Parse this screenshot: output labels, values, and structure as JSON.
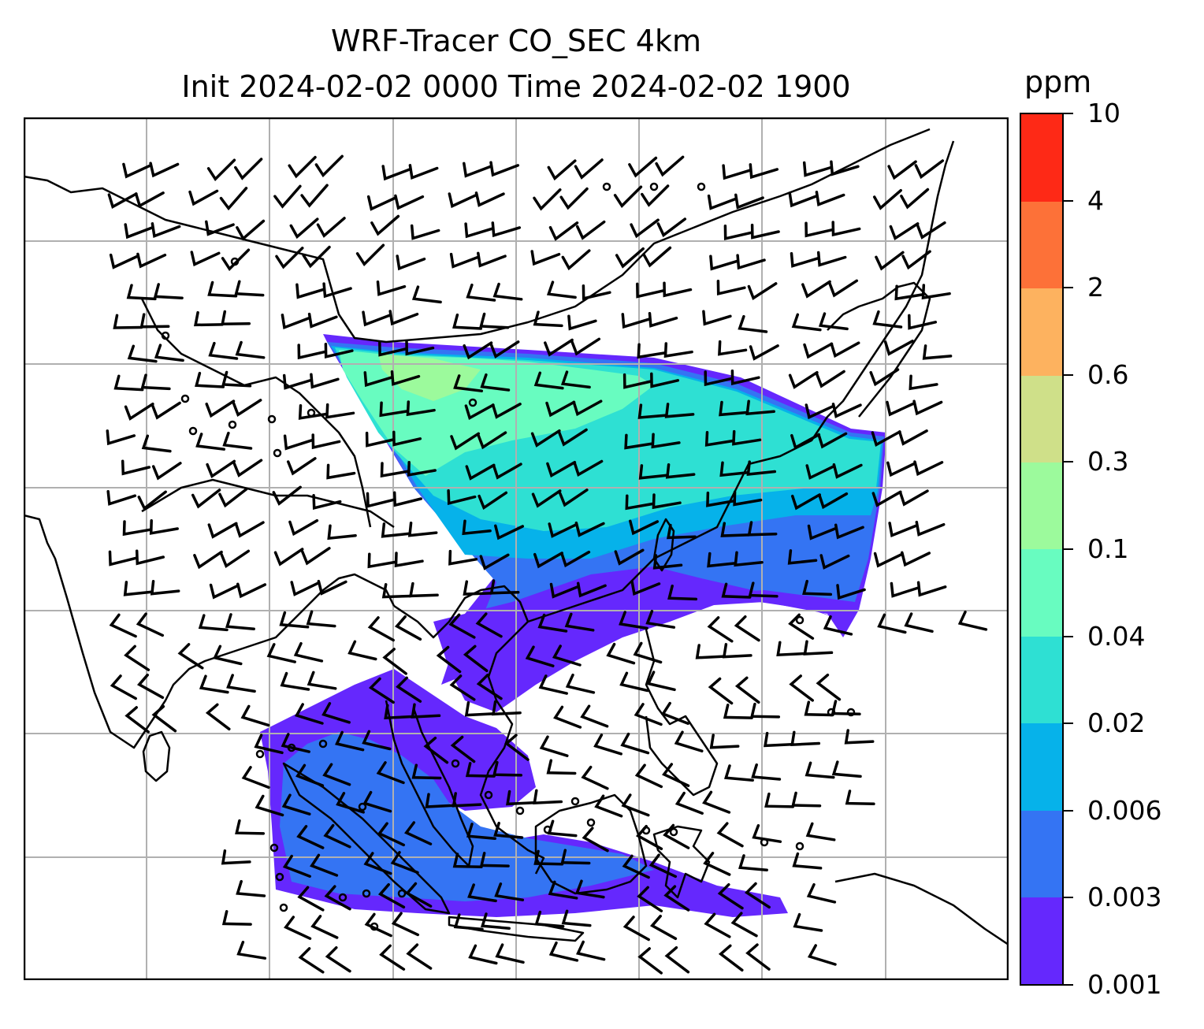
{
  "title": {
    "line1": "WRF-Tracer CO_SEC 4km",
    "line2": "Init 2024-02-02 0000 Time 2024-02-02 1900"
  },
  "colorbar": {
    "unit": "ppm",
    "labels": [
      "0.001",
      "0.003",
      "0.006",
      "0.02",
      "0.04",
      "0.1",
      "0.3",
      "0.6",
      "2",
      "4",
      "10"
    ],
    "colors": [
      "#6528fd",
      "#3474f3",
      "#06b2ea",
      "#2ee0d3",
      "#68fcc0",
      "#9cfa9c",
      "#cfe089",
      "#fdb25f",
      "#fd7138",
      "#fe2916"
    ]
  },
  "map": {
    "gridlines": true,
    "grid_color": "#b0b0b0",
    "coastline_color": "#000000",
    "barb_color": "#000000"
  }
}
